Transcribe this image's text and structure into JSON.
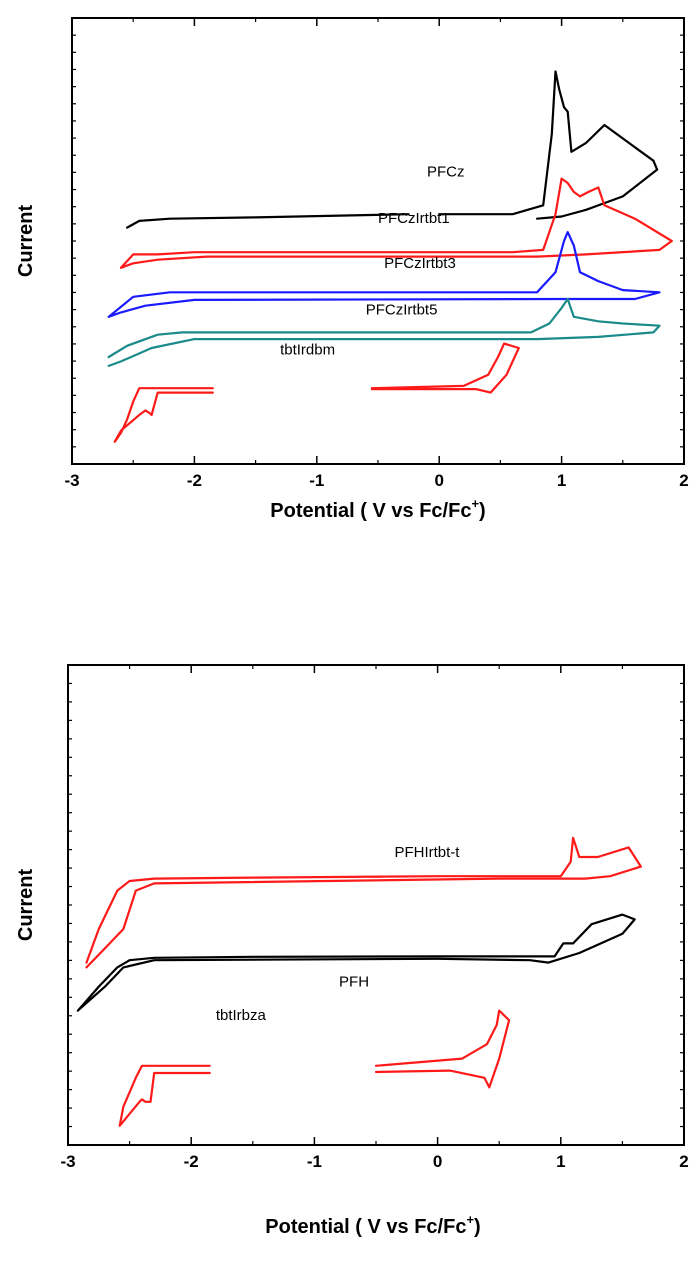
{
  "colors": {
    "red": "#ff1a1a",
    "black": "#000000",
    "blue": "#1a1aff",
    "teal": "#1a8a8a"
  },
  "chart_data": [
    {
      "type": "line",
      "title": "",
      "xlabel": "Potential ( V vs Fc/Fc",
      "xlabel_sup": "+",
      "xlabel_close": ")",
      "ylabel": "Current",
      "xlim": [
        -3,
        2
      ],
      "xticks": [
        "-3",
        "-2",
        "-1",
        "0",
        "1",
        "2"
      ],
      "y_ticks_labeled": false,
      "series": [
        {
          "name": "PFCz",
          "color": "#000000",
          "points": [
            [
              -2.55,
              0.53
            ],
            [
              -2.45,
              0.545
            ],
            [
              -2.2,
              0.55
            ],
            [
              -1.5,
              0.553
            ],
            [
              -0.25,
              0.56
            ],
            [
              0.0,
              0.56
            ],
            [
              0.6,
              0.56
            ],
            [
              0.85,
              0.58
            ],
            [
              0.92,
              0.74
            ],
            [
              0.95,
              0.88
            ],
            [
              0.98,
              0.84
            ],
            [
              1.02,
              0.8
            ],
            [
              1.05,
              0.79
            ],
            [
              1.08,
              0.7
            ],
            [
              1.2,
              0.72
            ],
            [
              1.35,
              0.76
            ],
            [
              1.55,
              0.72
            ],
            [
              1.75,
              0.68
            ],
            [
              1.78,
              0.66
            ],
            [
              1.5,
              0.6
            ],
            [
              1.2,
              0.57
            ],
            [
              1.0,
              0.555
            ],
            [
              0.8,
              0.55
            ]
          ],
          "gap": [
            -0.22,
            0.0
          ]
        },
        {
          "name": "PFCzIrtbt1",
          "color": "#ff1a1a",
          "points": [
            [
              -2.6,
              0.44
            ],
            [
              -2.5,
              0.47
            ],
            [
              -2.3,
              0.47
            ],
            [
              -2.0,
              0.475
            ],
            [
              0.0,
              0.475
            ],
            [
              0.6,
              0.475
            ],
            [
              0.85,
              0.48
            ],
            [
              0.95,
              0.56
            ],
            [
              1.0,
              0.64
            ],
            [
              1.05,
              0.63
            ],
            [
              1.1,
              0.61
            ],
            [
              1.15,
              0.6
            ],
            [
              1.22,
              0.61
            ],
            [
              1.3,
              0.62
            ],
            [
              1.35,
              0.58
            ],
            [
              1.6,
              0.55
            ],
            [
              1.9,
              0.5
            ],
            [
              1.8,
              0.48
            ],
            [
              1.2,
              0.47
            ],
            [
              0.8,
              0.465
            ],
            [
              -1.9,
              0.465
            ],
            [
              -2.3,
              0.458
            ],
            [
              -2.5,
              0.45
            ],
            [
              -2.6,
              0.44
            ]
          ]
        },
        {
          "name": "PFCzIrtbt3",
          "color": "#1a1aff",
          "points": [
            [
              -2.7,
              0.33
            ],
            [
              -2.5,
              0.375
            ],
            [
              -2.2,
              0.385
            ],
            [
              -2.0,
              0.385
            ],
            [
              0.0,
              0.385
            ],
            [
              0.8,
              0.385
            ],
            [
              0.95,
              0.43
            ],
            [
              1.02,
              0.5
            ],
            [
              1.05,
              0.52
            ],
            [
              1.1,
              0.49
            ],
            [
              1.15,
              0.43
            ],
            [
              1.3,
              0.41
            ],
            [
              1.5,
              0.39
            ],
            [
              1.8,
              0.385
            ],
            [
              1.6,
              0.37
            ],
            [
              1.0,
              0.37
            ],
            [
              -2.0,
              0.368
            ],
            [
              -2.4,
              0.355
            ],
            [
              -2.6,
              0.34
            ],
            [
              -2.7,
              0.33
            ]
          ]
        },
        {
          "name": "PFCzIrtbt5",
          "color": "#1a8a8a",
          "points": [
            [
              -2.7,
              0.24
            ],
            [
              -2.55,
              0.265
            ],
            [
              -2.3,
              0.29
            ],
            [
              -2.1,
              0.295
            ],
            [
              0.0,
              0.295
            ],
            [
              0.75,
              0.295
            ],
            [
              0.9,
              0.315
            ],
            [
              1.0,
              0.35
            ],
            [
              1.05,
              0.37
            ],
            [
              1.1,
              0.33
            ],
            [
              1.3,
              0.32
            ],
            [
              1.5,
              0.315
            ],
            [
              1.8,
              0.31
            ],
            [
              1.75,
              0.295
            ],
            [
              1.3,
              0.285
            ],
            [
              0.8,
              0.28
            ],
            [
              -2.0,
              0.28
            ],
            [
              -2.35,
              0.26
            ],
            [
              -2.6,
              0.23
            ],
            [
              -2.7,
              0.22
            ]
          ]
        },
        {
          "name": "tbtIrdbm (reduction)",
          "color": "#ff1a1a",
          "points": [
            [
              -1.85,
              0.17
            ],
            [
              -2.45,
              0.17
            ],
            [
              -2.5,
              0.14
            ],
            [
              -2.55,
              0.1
            ],
            [
              -2.6,
              0.07
            ],
            [
              -2.65,
              0.05
            ],
            [
              -2.6,
              0.075
            ],
            [
              -2.45,
              0.11
            ],
            [
              -2.4,
              0.12
            ],
            [
              -2.37,
              0.115
            ],
            [
              -2.35,
              0.11
            ],
            [
              -2.3,
              0.16
            ],
            [
              -1.85,
              0.16
            ]
          ]
        },
        {
          "name": "tbtIrdbm (oxidation)",
          "color": "#ff1a1a",
          "points": [
            [
              -0.55,
              0.17
            ],
            [
              0.2,
              0.175
            ],
            [
              0.4,
              0.2
            ],
            [
              0.48,
              0.24
            ],
            [
              0.53,
              0.27
            ],
            [
              0.65,
              0.26
            ],
            [
              0.55,
              0.2
            ],
            [
              0.42,
              0.16
            ],
            [
              0.3,
              0.168
            ],
            [
              -0.55,
              0.168
            ]
          ]
        }
      ],
      "labels": [
        {
          "text": "PFCz",
          "x": -0.1,
          "y": 0.645
        },
        {
          "text": "PFCzIrtbt1",
          "x": -0.5,
          "y": 0.54
        },
        {
          "text": "PFCzIrtbt3",
          "x": -0.45,
          "y": 0.44
        },
        {
          "text": "PFCzIrtbt5",
          "x": -0.6,
          "y": 0.335
        },
        {
          "text": "tbtIrdbm",
          "x": -1.3,
          "y": 0.245
        }
      ]
    },
    {
      "type": "line",
      "title": "",
      "xlabel": "Potential ( V vs Fc/Fc",
      "xlabel_sup": "+",
      "xlabel_close": ")",
      "ylabel": "Current",
      "xlim": [
        -3,
        2
      ],
      "xticks": [
        "-3",
        "-2",
        "-1",
        "0",
        "1",
        "2"
      ],
      "y_ticks_labeled": false,
      "series": [
        {
          "name": "PFHIrtbt-t",
          "color": "#ff1a1a",
          "points": [
            [
              -2.85,
              0.38
            ],
            [
              -2.75,
              0.45
            ],
            [
              -2.6,
              0.53
            ],
            [
              -2.5,
              0.55
            ],
            [
              -2.3,
              0.555
            ],
            [
              -1.5,
              0.557
            ],
            [
              0.0,
              0.56
            ],
            [
              1.0,
              0.56
            ],
            [
              1.08,
              0.59
            ],
            [
              1.1,
              0.64
            ],
            [
              1.15,
              0.6
            ],
            [
              1.3,
              0.6
            ],
            [
              1.55,
              0.62
            ],
            [
              1.65,
              0.58
            ],
            [
              1.4,
              0.56
            ],
            [
              1.2,
              0.555
            ],
            [
              0.5,
              0.555
            ],
            [
              -2.3,
              0.545
            ],
            [
              -2.45,
              0.53
            ],
            [
              -2.55,
              0.45
            ],
            [
              -2.7,
              0.41
            ],
            [
              -2.85,
              0.37
            ]
          ]
        },
        {
          "name": "PFH",
          "color": "#000000",
          "points": [
            [
              -2.92,
              0.28
            ],
            [
              -2.75,
              0.33
            ],
            [
              -2.6,
              0.37
            ],
            [
              -2.5,
              0.385
            ],
            [
              -2.3,
              0.39
            ],
            [
              -1.5,
              0.392
            ],
            [
              0.0,
              0.393
            ],
            [
              0.95,
              0.393
            ],
            [
              1.02,
              0.42
            ],
            [
              1.1,
              0.42
            ],
            [
              1.25,
              0.46
            ],
            [
              1.5,
              0.48
            ],
            [
              1.6,
              0.47
            ],
            [
              1.5,
              0.44
            ],
            [
              1.15,
              0.4
            ],
            [
              0.9,
              0.38
            ],
            [
              0.75,
              0.385
            ],
            [
              0.0,
              0.388
            ],
            [
              -2.3,
              0.385
            ],
            [
              -2.55,
              0.37
            ],
            [
              -2.7,
              0.33
            ],
            [
              -2.92,
              0.28
            ]
          ]
        },
        {
          "name": "tbtIrbza (reduction)",
          "color": "#ff1a1a",
          "points": [
            [
              -1.85,
              0.165
            ],
            [
              -2.4,
              0.165
            ],
            [
              -2.45,
              0.14
            ],
            [
              -2.55,
              0.08
            ],
            [
              -2.58,
              0.04
            ],
            [
              -2.5,
              0.065
            ],
            [
              -2.42,
              0.09
            ],
            [
              -2.4,
              0.095
            ],
            [
              -2.37,
              0.09
            ],
            [
              -2.33,
              0.09
            ],
            [
              -2.3,
              0.15
            ],
            [
              -1.85,
              0.15
            ]
          ]
        },
        {
          "name": "tbtIrbza (oxidation)",
          "color": "#ff1a1a",
          "points": [
            [
              -0.5,
              0.165
            ],
            [
              0.2,
              0.18
            ],
            [
              0.4,
              0.21
            ],
            [
              0.48,
              0.25
            ],
            [
              0.5,
              0.28
            ],
            [
              0.58,
              0.26
            ],
            [
              0.5,
              0.18
            ],
            [
              0.42,
              0.12
            ],
            [
              0.38,
              0.14
            ],
            [
              0.1,
              0.155
            ],
            [
              -0.5,
              0.152
            ]
          ]
        }
      ],
      "labels": [
        {
          "text": "PFHIrtbt-t",
          "x": -0.35,
          "y": 0.6
        },
        {
          "text": "PFH",
          "x": -0.8,
          "y": 0.33
        },
        {
          "text": "tbtIrbza",
          "x": -1.8,
          "y": 0.26
        }
      ]
    }
  ]
}
